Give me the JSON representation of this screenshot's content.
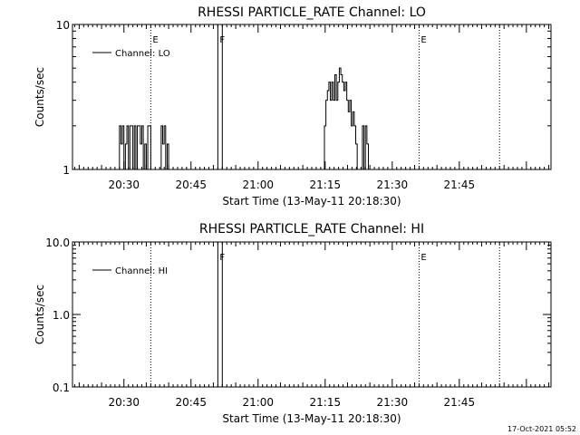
{
  "date_stamp": "17-Oct-2021 05:52",
  "chart_data": [
    {
      "type": "line",
      "title": "RHESSI PARTICLE_RATE Channel: LO",
      "xlabel": "Start Time (13-May-11 20:18:30)",
      "ylabel": "Counts/sec",
      "yscale": "log",
      "ylim": [
        1,
        10
      ],
      "yticks": [
        {
          "value": 1,
          "label": "1"
        },
        {
          "value": 10,
          "label": "10"
        }
      ],
      "xlim_minutes_after_2018_30": [
        0,
        107
      ],
      "xticks": [
        "20:30",
        "20:45",
        "21:00",
        "21:15",
        "21:30",
        "21:45"
      ],
      "legend": {
        "label": "Channel: LO",
        "position": "top-left"
      },
      "event_markers": [
        {
          "time": "20:36",
          "label": "E",
          "style": "dotted"
        },
        {
          "time": "20:51",
          "label": "F",
          "style": "solid"
        },
        {
          "time": "20:52",
          "label": "",
          "style": "solid"
        },
        {
          "time": "21:36",
          "label": "E",
          "style": "dotted"
        },
        {
          "time": "21:54",
          "label": "",
          "style": "dotted"
        }
      ],
      "series": [
        {
          "name": "Channel: LO",
          "x": [
            "20:28:30",
            "20:29:00",
            "20:29:20",
            "20:29:40",
            "20:30:00",
            "20:30:20",
            "20:30:40",
            "20:31:00",
            "20:31:20",
            "20:31:40",
            "20:32:00",
            "20:32:20",
            "20:32:40",
            "20:33:00",
            "20:33:20",
            "20:33:40",
            "20:34:00",
            "20:34:20",
            "20:34:40",
            "20:35:00",
            "20:35:20",
            "20:35:40",
            "20:36:00",
            "20:36:20",
            "20:36:40",
            "20:37:00",
            "20:37:20",
            "20:38:00",
            "20:38:20",
            "20:38:40",
            "20:39:00",
            "20:39:20",
            "20:39:40",
            "20:40:00",
            "21:14:30",
            "21:14:50",
            "21:15:10",
            "21:15:30",
            "21:15:50",
            "21:16:10",
            "21:16:30",
            "21:16:50",
            "21:17:10",
            "21:17:30",
            "21:17:50",
            "21:18:10",
            "21:18:30",
            "21:18:50",
            "21:19:10",
            "21:19:30",
            "21:19:50",
            "21:20:10",
            "21:20:30",
            "21:20:50",
            "21:21:10",
            "21:21:30",
            "21:21:50",
            "21:22:10",
            "21:22:30",
            "21:23:00",
            "21:23:20",
            "21:23:40",
            "21:24:00",
            "21:24:20",
            "21:24:40",
            "21:25:00"
          ],
          "values": [
            1,
            2,
            1.5,
            2,
            1,
            1.5,
            2,
            1,
            2,
            2,
            1,
            2,
            1,
            2,
            2,
            1.5,
            2,
            1,
            1.5,
            1,
            2,
            2,
            1,
            1,
            1,
            1,
            1,
            1,
            2,
            1.5,
            2,
            1,
            1.5,
            1,
            1,
            2,
            3,
            3.5,
            4,
            3,
            4,
            3,
            4.5,
            3,
            4,
            5,
            4.5,
            4,
            3.5,
            4,
            3,
            2.5,
            3,
            2,
            2.5,
            2,
            1.5,
            1,
            1,
            1,
            2,
            1,
            2,
            1.5,
            1,
            1
          ]
        }
      ]
    },
    {
      "type": "line",
      "title": "RHESSI PARTICLE_RATE Channel: HI",
      "xlabel": "Start Time (13-May-11 20:18:30)",
      "ylabel": "Counts/sec",
      "yscale": "log",
      "ylim": [
        0.1,
        10
      ],
      "yticks": [
        {
          "value": 0.1,
          "label": "0.1"
        },
        {
          "value": 1,
          "label": "1.0"
        },
        {
          "value": 10,
          "label": "10.0"
        }
      ],
      "xlim_minutes_after_2018_30": [
        0,
        107
      ],
      "xticks": [
        "20:30",
        "20:45",
        "21:00",
        "21:15",
        "21:30",
        "21:45"
      ],
      "legend": {
        "label": "Channel: HI",
        "position": "top-left"
      },
      "event_markers": [
        {
          "time": "20:36",
          "label": "",
          "style": "dotted"
        },
        {
          "time": "20:51",
          "label": "F",
          "style": "solid"
        },
        {
          "time": "20:52",
          "label": "",
          "style": "solid"
        },
        {
          "time": "21:36",
          "label": "E",
          "style": "dotted"
        },
        {
          "time": "21:54",
          "label": "",
          "style": "dotted"
        }
      ],
      "series": [
        {
          "name": "Channel: HI",
          "x": [],
          "values": []
        }
      ]
    }
  ]
}
